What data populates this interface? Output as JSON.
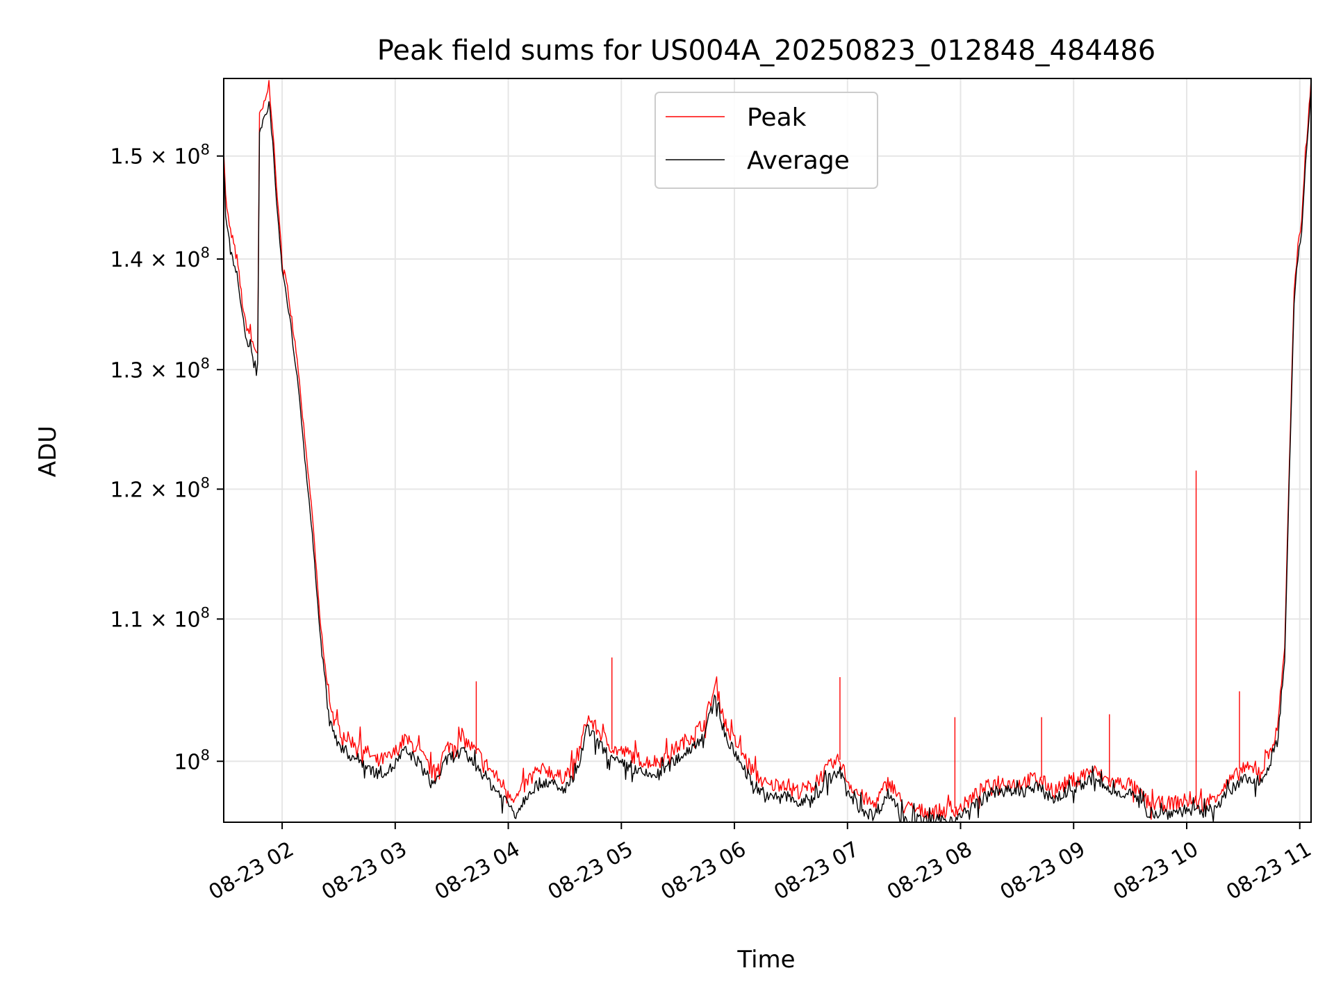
{
  "chart_data": {
    "type": "line",
    "title": "Peak field sums for US004A_20250823_012848_484486",
    "xlabel": "Time",
    "ylabel": "ADU",
    "y_scale": "log",
    "grid": true,
    "legend_position": "top-center",
    "x_range": [
      "2025-08-23 01:29",
      "2025-08-23 11:06"
    ],
    "y_range": [
      96000000,
      158000000
    ],
    "x_ticks": [
      {
        "value": "2025-08-23 02:00",
        "label": "08-23 02"
      },
      {
        "value": "2025-08-23 03:00",
        "label": "08-23 03"
      },
      {
        "value": "2025-08-23 04:00",
        "label": "08-23 04"
      },
      {
        "value": "2025-08-23 05:00",
        "label": "08-23 05"
      },
      {
        "value": "2025-08-23 06:00",
        "label": "08-23 06"
      },
      {
        "value": "2025-08-23 07:00",
        "label": "08-23 07"
      },
      {
        "value": "2025-08-23 08:00",
        "label": "08-23 08"
      },
      {
        "value": "2025-08-23 09:00",
        "label": "08-23 09"
      },
      {
        "value": "2025-08-23 10:00",
        "label": "08-23 10"
      },
      {
        "value": "2025-08-23 11:00",
        "label": "08-23 11"
      }
    ],
    "y_ticks": [
      {
        "value": 100000000,
        "mantissa": "10",
        "exp": "8",
        "label": "10^8"
      },
      {
        "value": 110000000,
        "mantissa": "1.1 × 10",
        "exp": "8",
        "label": "1.1 × 10^8"
      },
      {
        "value": 120000000,
        "mantissa": "1.2 × 10",
        "exp": "8",
        "label": "1.2 × 10^8"
      },
      {
        "value": 130000000,
        "mantissa": "1.3 × 10",
        "exp": "8",
        "label": "1.3 × 10^8"
      },
      {
        "value": 140000000,
        "mantissa": "1.4 × 10",
        "exp": "8",
        "label": "1.4 × 10^8"
      },
      {
        "value": 150000000,
        "mantissa": "1.5 × 10",
        "exp": "8",
        "label": "1.5 × 10^8"
      }
    ],
    "series": [
      {
        "name": "Peak",
        "color": "#ff0000",
        "points": [
          [
            "2025-08-23 01:29",
            151000000
          ],
          [
            "2025-08-23 01:30",
            146000000
          ],
          [
            "2025-08-23 01:32",
            143000000
          ],
          [
            "2025-08-23 01:36",
            140000000
          ],
          [
            "2025-08-23 01:40",
            134500000
          ],
          [
            "2025-08-23 01:45",
            132000000
          ],
          [
            "2025-08-23 01:47",
            131500000
          ],
          [
            "2025-08-23 01:48",
            154000000
          ],
          [
            "2025-08-23 01:51",
            155500000
          ],
          [
            "2025-08-23 01:53",
            157500000
          ],
          [
            "2025-08-23 01:55",
            153000000
          ],
          [
            "2025-08-23 01:57",
            147000000
          ],
          [
            "2025-08-23 02:00",
            140000000
          ],
          [
            "2025-08-23 02:04",
            136000000
          ],
          [
            "2025-08-23 02:08",
            131000000
          ],
          [
            "2025-08-23 02:12",
            124000000
          ],
          [
            "2025-08-23 02:16",
            118000000
          ],
          [
            "2025-08-23 02:20",
            110000000
          ],
          [
            "2025-08-23 02:24",
            105000000
          ],
          [
            "2025-08-23 02:28",
            102500000
          ],
          [
            "2025-08-23 02:35",
            101500000
          ],
          [
            "2025-08-23 02:42",
            101000000
          ],
          [
            "2025-08-23 02:50",
            100000000
          ],
          [
            "2025-08-23 02:58",
            100300000
          ],
          [
            "2025-08-23 03:05",
            101500000
          ],
          [
            "2025-08-23 03:12",
            100800000
          ],
          [
            "2025-08-23 03:20",
            99200000
          ],
          [
            "2025-08-23 03:28",
            101000000
          ],
          [
            "2025-08-23 03:36",
            101500000
          ],
          [
            "2025-08-23 03:44",
            100500000
          ],
          [
            "2025-08-23 03:52",
            99200000
          ],
          [
            "2025-08-23 03:58",
            98300000
          ],
          [
            "2025-08-23 04:04",
            97500000
          ],
          [
            "2025-08-23 04:12",
            99000000
          ],
          [
            "2025-08-23 04:20",
            99500000
          ],
          [
            "2025-08-23 04:28",
            98900000
          ],
          [
            "2025-08-23 04:36",
            99800000
          ],
          [
            "2025-08-23 04:42",
            103000000
          ],
          [
            "2025-08-23 04:48",
            102000000
          ],
          [
            "2025-08-23 04:56",
            100800000
          ],
          [
            "2025-08-23 05:04",
            100500000
          ],
          [
            "2025-08-23 05:12",
            100000000
          ],
          [
            "2025-08-23 05:20",
            100000000
          ],
          [
            "2025-08-23 05:28",
            100800000
          ],
          [
            "2025-08-23 05:36",
            101600000
          ],
          [
            "2025-08-23 05:44",
            102600000
          ],
          [
            "2025-08-23 05:50",
            105200000
          ],
          [
            "2025-08-23 05:56",
            102200000
          ],
          [
            "2025-08-23 06:02",
            101000000
          ],
          [
            "2025-08-23 06:10",
            99300000
          ],
          [
            "2025-08-23 06:18",
            98300000
          ],
          [
            "2025-08-23 06:26",
            98600000
          ],
          [
            "2025-08-23 06:34",
            98000000
          ],
          [
            "2025-08-23 06:42",
            98400000
          ],
          [
            "2025-08-23 06:50",
            99600000
          ],
          [
            "2025-08-23 06:56",
            100100000
          ],
          [
            "2025-08-23 07:00",
            98700000
          ],
          [
            "2025-08-23 07:06",
            97800000
          ],
          [
            "2025-08-23 07:14",
            97100000
          ],
          [
            "2025-08-23 07:22",
            98700000
          ],
          [
            "2025-08-23 07:30",
            97000000
          ],
          [
            "2025-08-23 07:40",
            96700000
          ],
          [
            "2025-08-23 07:50",
            96700000
          ],
          [
            "2025-08-23 08:00",
            96900000
          ],
          [
            "2025-08-23 08:10",
            98000000
          ],
          [
            "2025-08-23 08:20",
            98700000
          ],
          [
            "2025-08-23 08:30",
            98500000
          ],
          [
            "2025-08-23 08:40",
            98900000
          ],
          [
            "2025-08-23 08:50",
            98100000
          ],
          [
            "2025-08-23 09:00",
            98800000
          ],
          [
            "2025-08-23 09:10",
            99400000
          ],
          [
            "2025-08-23 09:20",
            98600000
          ],
          [
            "2025-08-23 09:30",
            98500000
          ],
          [
            "2025-08-23 09:40",
            97200000
          ],
          [
            "2025-08-23 09:50",
            97200000
          ],
          [
            "2025-08-23 10:00",
            97400000
          ],
          [
            "2025-08-23 10:10",
            97200000
          ],
          [
            "2025-08-23 10:20",
            98300000
          ],
          [
            "2025-08-23 10:30",
            99500000
          ],
          [
            "2025-08-23 10:40",
            99400000
          ],
          [
            "2025-08-23 10:48",
            102000000
          ],
          [
            "2025-08-23 10:52",
            108000000
          ],
          [
            "2025-08-23 10:55",
            125000000
          ],
          [
            "2025-08-23 10:57",
            137000000
          ],
          [
            "2025-08-23 10:59",
            141000000
          ],
          [
            "2025-08-23 11:01",
            143500000
          ],
          [
            "2025-08-23 11:03",
            150000000
          ],
          [
            "2025-08-23 11:05",
            155000000
          ],
          [
            "2025-08-23 11:06",
            158000000
          ]
        ],
        "spikes": [
          [
            "2025-08-23 03:43",
            105500000
          ],
          [
            "2025-08-23 04:55",
            107200000
          ],
          [
            "2025-08-23 06:56",
            105800000
          ],
          [
            "2025-08-23 07:57",
            103000000
          ],
          [
            "2025-08-23 08:43",
            103000000
          ],
          [
            "2025-08-23 09:19",
            103200000
          ],
          [
            "2025-08-23 10:05",
            121500000
          ],
          [
            "2025-08-23 10:28",
            104800000
          ]
        ]
      },
      {
        "name": "Average",
        "color": "#000000",
        "points": [
          [
            "2025-08-23 01:29",
            149000000
          ],
          [
            "2025-08-23 01:30",
            144500000
          ],
          [
            "2025-08-23 01:32",
            141500000
          ],
          [
            "2025-08-23 01:36",
            138500000
          ],
          [
            "2025-08-23 01:40",
            133500000
          ],
          [
            "2025-08-23 01:45",
            130500000
          ],
          [
            "2025-08-23 01:47",
            130500000
          ],
          [
            "2025-08-23 01:48",
            152500000
          ],
          [
            "2025-08-23 01:51",
            154000000
          ],
          [
            "2025-08-23 01:53",
            155500000
          ],
          [
            "2025-08-23 01:55",
            151500000
          ],
          [
            "2025-08-23 01:57",
            145500000
          ],
          [
            "2025-08-23 02:00",
            139000000
          ],
          [
            "2025-08-23 02:04",
            134500000
          ],
          [
            "2025-08-23 02:08",
            129500000
          ],
          [
            "2025-08-23 02:12",
            122500000
          ],
          [
            "2025-08-23 02:16",
            116500000
          ],
          [
            "2025-08-23 02:20",
            109000000
          ],
          [
            "2025-08-23 02:24",
            104000000
          ],
          [
            "2025-08-23 02:28",
            101500000
          ],
          [
            "2025-08-23 02:35",
            100500000
          ],
          [
            "2025-08-23 02:42",
            100000000
          ],
          [
            "2025-08-23 02:50",
            99200000
          ],
          [
            "2025-08-23 02:58",
            99500000
          ],
          [
            "2025-08-23 03:05",
            100700000
          ],
          [
            "2025-08-23 03:12",
            100000000
          ],
          [
            "2025-08-23 03:20",
            98400000
          ],
          [
            "2025-08-23 03:28",
            100200000
          ],
          [
            "2025-08-23 03:36",
            100600000
          ],
          [
            "2025-08-23 03:44",
            99600000
          ],
          [
            "2025-08-23 03:52",
            98300000
          ],
          [
            "2025-08-23 03:58",
            97500000
          ],
          [
            "2025-08-23 04:04",
            96600000
          ],
          [
            "2025-08-23 04:12",
            98200000
          ],
          [
            "2025-08-23 04:20",
            98700000
          ],
          [
            "2025-08-23 04:28",
            98000000
          ],
          [
            "2025-08-23 04:36",
            99000000
          ],
          [
            "2025-08-23 04:42",
            102200000
          ],
          [
            "2025-08-23 04:48",
            101200000
          ],
          [
            "2025-08-23 04:56",
            100000000
          ],
          [
            "2025-08-23 05:04",
            99600000
          ],
          [
            "2025-08-23 05:12",
            99100000
          ],
          [
            "2025-08-23 05:20",
            99100000
          ],
          [
            "2025-08-23 05:28",
            100000000
          ],
          [
            "2025-08-23 05:36",
            100800000
          ],
          [
            "2025-08-23 05:44",
            101800000
          ],
          [
            "2025-08-23 05:50",
            104400000
          ],
          [
            "2025-08-23 05:56",
            101400000
          ],
          [
            "2025-08-23 06:02",
            100200000
          ],
          [
            "2025-08-23 06:10",
            98500000
          ],
          [
            "2025-08-23 06:18",
            97500000
          ],
          [
            "2025-08-23 06:26",
            97800000
          ],
          [
            "2025-08-23 06:34",
            97200000
          ],
          [
            "2025-08-23 06:42",
            97600000
          ],
          [
            "2025-08-23 06:50",
            98800000
          ],
          [
            "2025-08-23 06:56",
            99300000
          ],
          [
            "2025-08-23 07:00",
            97900000
          ],
          [
            "2025-08-23 07:06",
            97000000
          ],
          [
            "2025-08-23 07:14",
            96400000
          ],
          [
            "2025-08-23 07:22",
            97900000
          ],
          [
            "2025-08-23 07:30",
            96300000
          ],
          [
            "2025-08-23 07:40",
            96100000
          ],
          [
            "2025-08-23 07:50",
            96100000
          ],
          [
            "2025-08-23 08:00",
            96300000
          ],
          [
            "2025-08-23 08:10",
            97400000
          ],
          [
            "2025-08-23 08:20",
            98100000
          ],
          [
            "2025-08-23 08:30",
            97900000
          ],
          [
            "2025-08-23 08:40",
            98300000
          ],
          [
            "2025-08-23 08:50",
            97500000
          ],
          [
            "2025-08-23 09:00",
            98200000
          ],
          [
            "2025-08-23 09:10",
            98800000
          ],
          [
            "2025-08-23 09:20",
            98000000
          ],
          [
            "2025-08-23 09:30",
            97900000
          ],
          [
            "2025-08-23 09:40",
            96600000
          ],
          [
            "2025-08-23 09:50",
            96600000
          ],
          [
            "2025-08-23 10:00",
            96800000
          ],
          [
            "2025-08-23 10:10",
            96600000
          ],
          [
            "2025-08-23 10:20",
            97600000
          ],
          [
            "2025-08-23 10:30",
            98800000
          ],
          [
            "2025-08-23 10:40",
            98700000
          ],
          [
            "2025-08-23 10:48",
            101200000
          ],
          [
            "2025-08-23 10:52",
            107000000
          ],
          [
            "2025-08-23 10:55",
            124000000
          ],
          [
            "2025-08-23 10:57",
            136000000
          ],
          [
            "2025-08-23 10:59",
            140000000
          ],
          [
            "2025-08-23 11:01",
            142500000
          ],
          [
            "2025-08-23 11:03",
            149000000
          ],
          [
            "2025-08-23 11:05",
            154000000
          ],
          [
            "2025-08-23 11:06",
            157000000
          ]
        ]
      }
    ]
  }
}
